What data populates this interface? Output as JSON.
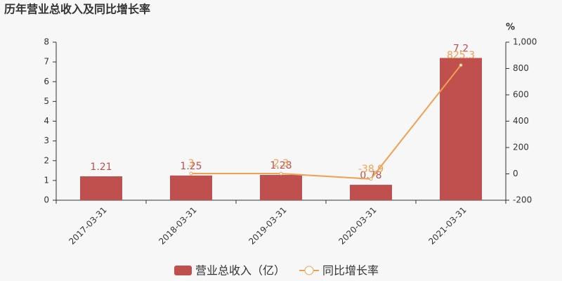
{
  "chart_data": {
    "type": "bar-line",
    "title": "历年营业总收入及同比增长率",
    "y2_unit": "%",
    "categories": [
      "2017-03-31",
      "2018-03-31",
      "2019-03-31",
      "2020-03-31",
      "2021-03-31"
    ],
    "series": [
      {
        "name": "营业总收入（亿）",
        "type": "bar",
        "color": "#c0504d",
        "values": [
          1.21,
          1.25,
          1.28,
          0.78,
          7.2
        ]
      },
      {
        "name": "同比增长率",
        "type": "line",
        "axis": "y2",
        "color": "#f0a050",
        "values": [
          null,
          3,
          2.3,
          -38.9,
          825.3
        ]
      }
    ],
    "ylim": [
      0,
      8
    ],
    "yticks": [
      0,
      1,
      2,
      3,
      4,
      5,
      6,
      7,
      8
    ],
    "y2lim": [
      -200,
      1000
    ],
    "y2ticks": [
      -200,
      0,
      200,
      400,
      600,
      800,
      {
        "value": 1000,
        "label": "1,000"
      }
    ],
    "grid": false
  }
}
